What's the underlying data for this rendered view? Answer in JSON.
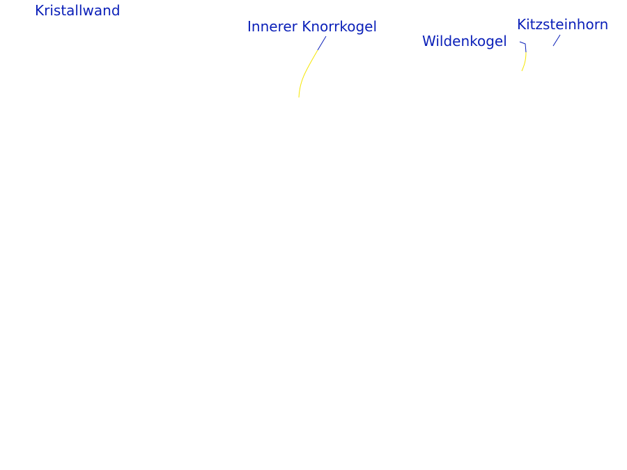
{
  "label_color": "#0a1fb8",
  "leader_color_top": "#0a1fb8",
  "leader_color_bottom": "#f5e600",
  "peaks": [
    {
      "name": "Kristallwand"
    },
    {
      "name": "Innerer Knorrkogel"
    },
    {
      "name": "Wildenkogel"
    },
    {
      "name": "Kitzsteinhorn"
    }
  ]
}
